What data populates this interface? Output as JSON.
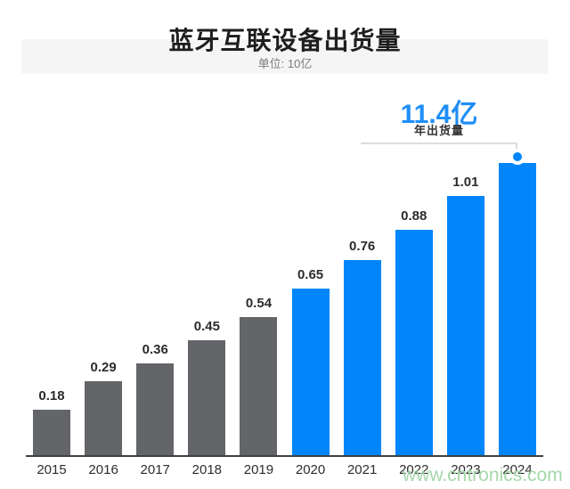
{
  "header": {
    "title": "蓝牙互联设备出货量",
    "subtitle": "单位: 10亿"
  },
  "callout": {
    "value": "11.4亿",
    "label": "年出货量"
  },
  "watermark": "www.cntronics.com",
  "colors": {
    "accent_blue": "#1e8ef7",
    "bar_blue": "#0085fa",
    "bar_gray": "#636569",
    "band_gray": "#f5f5f5",
    "watermark_green": "#a5d8ab"
  },
  "chart_data": {
    "type": "bar",
    "title": "蓝牙互联设备出货量",
    "subtitle": "单位: 10亿",
    "unit": "10亿 (billions x10)",
    "categories": [
      "2015",
      "2016",
      "2017",
      "2018",
      "2019",
      "2020",
      "2021",
      "2022",
      "2023",
      "2024"
    ],
    "values": [
      0.18,
      0.29,
      0.36,
      0.45,
      0.54,
      0.65,
      0.76,
      0.88,
      1.01,
      1.14
    ],
    "value_labels": [
      "0.18",
      "0.29",
      "0.36",
      "0.45",
      "0.54",
      "0.65",
      "0.76",
      "0.88",
      "1.01",
      ""
    ],
    "bar_colors": [
      "gray",
      "gray",
      "gray",
      "gray",
      "gray",
      "blue",
      "blue",
      "blue",
      "blue",
      "blue"
    ],
    "ylim": [
      0,
      1.2
    ],
    "grid": false,
    "legend": false,
    "annotation": {
      "text": "11.4亿",
      "sub_text": "年出货量",
      "target_category": "2024",
      "target_value": 1.14
    }
  }
}
